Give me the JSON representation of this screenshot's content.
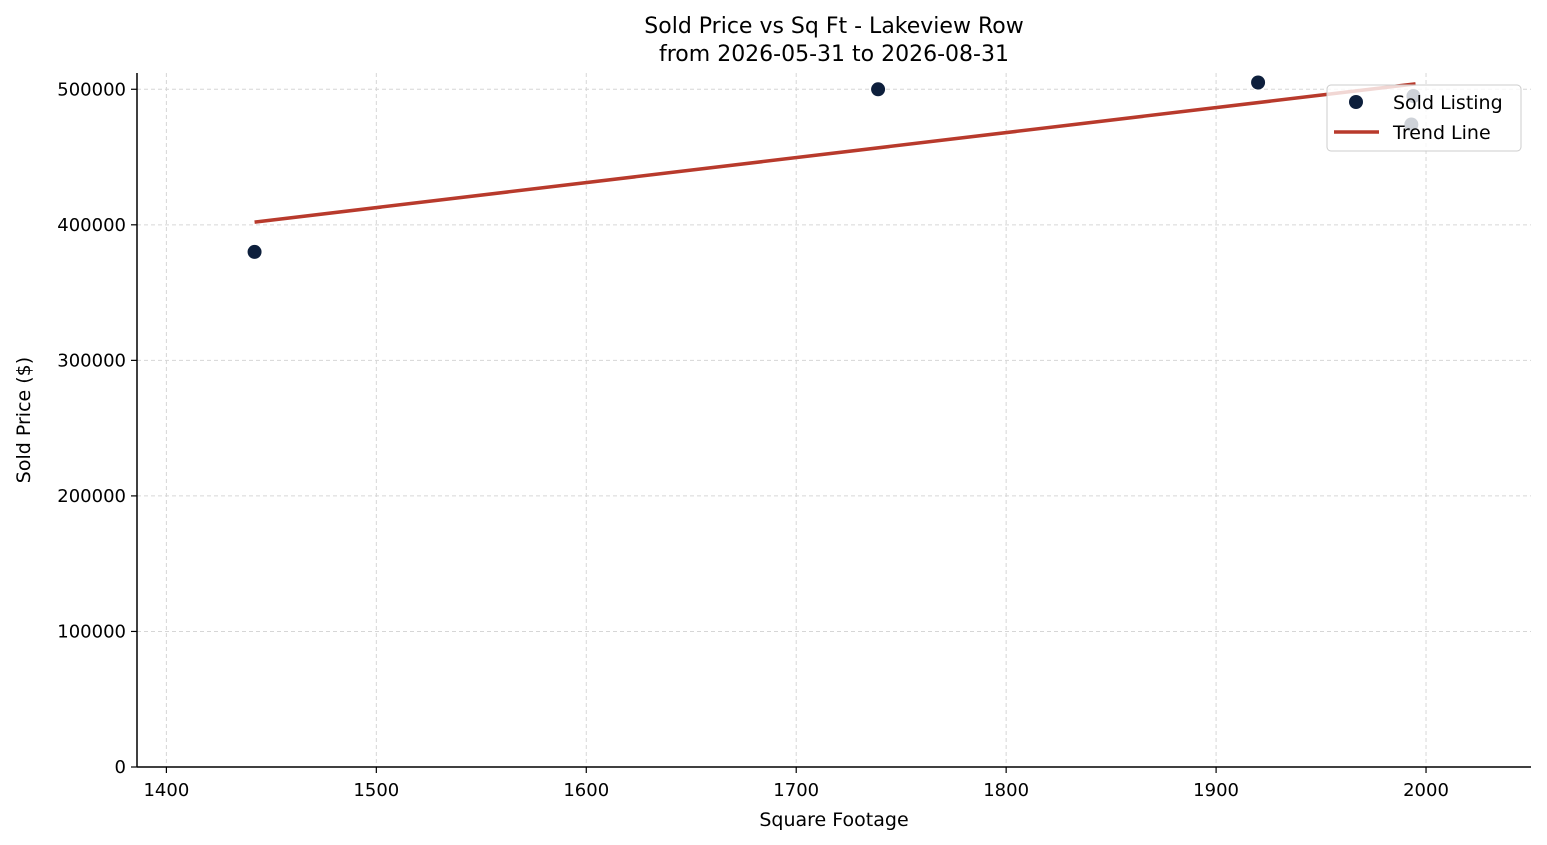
{
  "chart_data": {
    "type": "scatter",
    "title": "Sold Price vs Sq Ft - Lakeview Row",
    "subtitle": "from 2026-05-31 to 2026-08-31",
    "xlabel": "Square Footage",
    "ylabel": "Sold Price ($)",
    "xlim": [
      1386,
      2050
    ],
    "ylim": [
      0,
      512000
    ],
    "xticks": [
      1400,
      1500,
      1600,
      1700,
      1800,
      1900,
      2000
    ],
    "yticks": [
      0,
      100000,
      200000,
      300000,
      400000,
      500000
    ],
    "grid": true,
    "legend_position": "top-right",
    "series": [
      {
        "name": "Sold Listing",
        "kind": "scatter",
        "color": "#0d1f3c",
        "points": [
          {
            "x": 1442,
            "y": 380000
          },
          {
            "x": 1739,
            "y": 500000
          },
          {
            "x": 1920,
            "y": 505000
          },
          {
            "x": 1993,
            "y": 474000
          },
          {
            "x": 1994,
            "y": 495000
          }
        ]
      },
      {
        "name": "Trend Line",
        "kind": "line",
        "color": "#b83a2c",
        "points": [
          {
            "x": 1442,
            "y": 402000
          },
          {
            "x": 1995,
            "y": 504000
          }
        ]
      }
    ]
  }
}
